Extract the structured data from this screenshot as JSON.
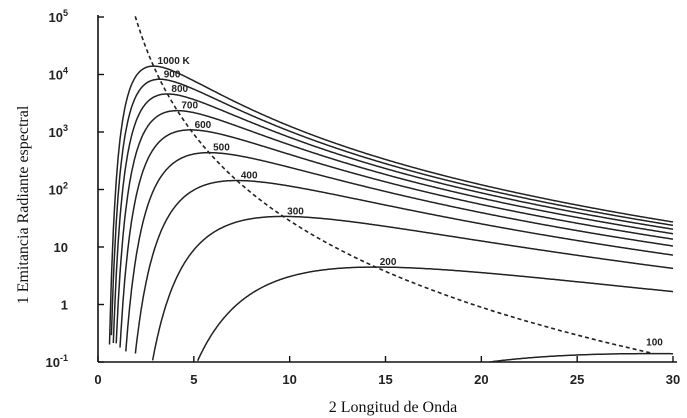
{
  "chart_data": {
    "type": "line",
    "title": "",
    "xlabel": "2  Longitud de Onda",
    "ylabel": "1  Emitancia Radiante espectral",
    "xlim": [
      0,
      30
    ],
    "ylim": [
      0.1,
      100000
    ],
    "yscale": "log",
    "grid": false,
    "xticks": [
      0,
      5,
      10,
      15,
      20,
      25,
      30
    ],
    "xtick_labels": [
      "0",
      "5",
      "10",
      "15",
      "20",
      "25",
      "30"
    ],
    "yticks": [
      {
        "value": 100000,
        "base": "10",
        "sup": "5"
      },
      {
        "value": 10000,
        "base": "10",
        "sup": "4"
      },
      {
        "value": 1000,
        "base": "10",
        "sup": "3"
      },
      {
        "value": 100,
        "base": "10",
        "sup": "2"
      },
      {
        "value": 10,
        "base": "10",
        "sup": ""
      },
      {
        "value": 1,
        "base": "1",
        "sup": ""
      },
      {
        "value": 0.1,
        "base": "10",
        "sup": "-1"
      }
    ],
    "series": [
      {
        "name": "1000 K",
        "temperature": 1000
      },
      {
        "name": "900",
        "temperature": 900
      },
      {
        "name": "800",
        "temperature": 800
      },
      {
        "name": "700",
        "temperature": 700
      },
      {
        "name": "600",
        "temperature": 600
      },
      {
        "name": "500",
        "temperature": 500
      },
      {
        "name": "400",
        "temperature": 400
      },
      {
        "name": "300",
        "temperature": 300
      },
      {
        "name": "200",
        "temperature": 200
      },
      {
        "name": "100",
        "temperature": 100
      }
    ],
    "wien_peak_line": {
      "style": "dashed"
    }
  }
}
